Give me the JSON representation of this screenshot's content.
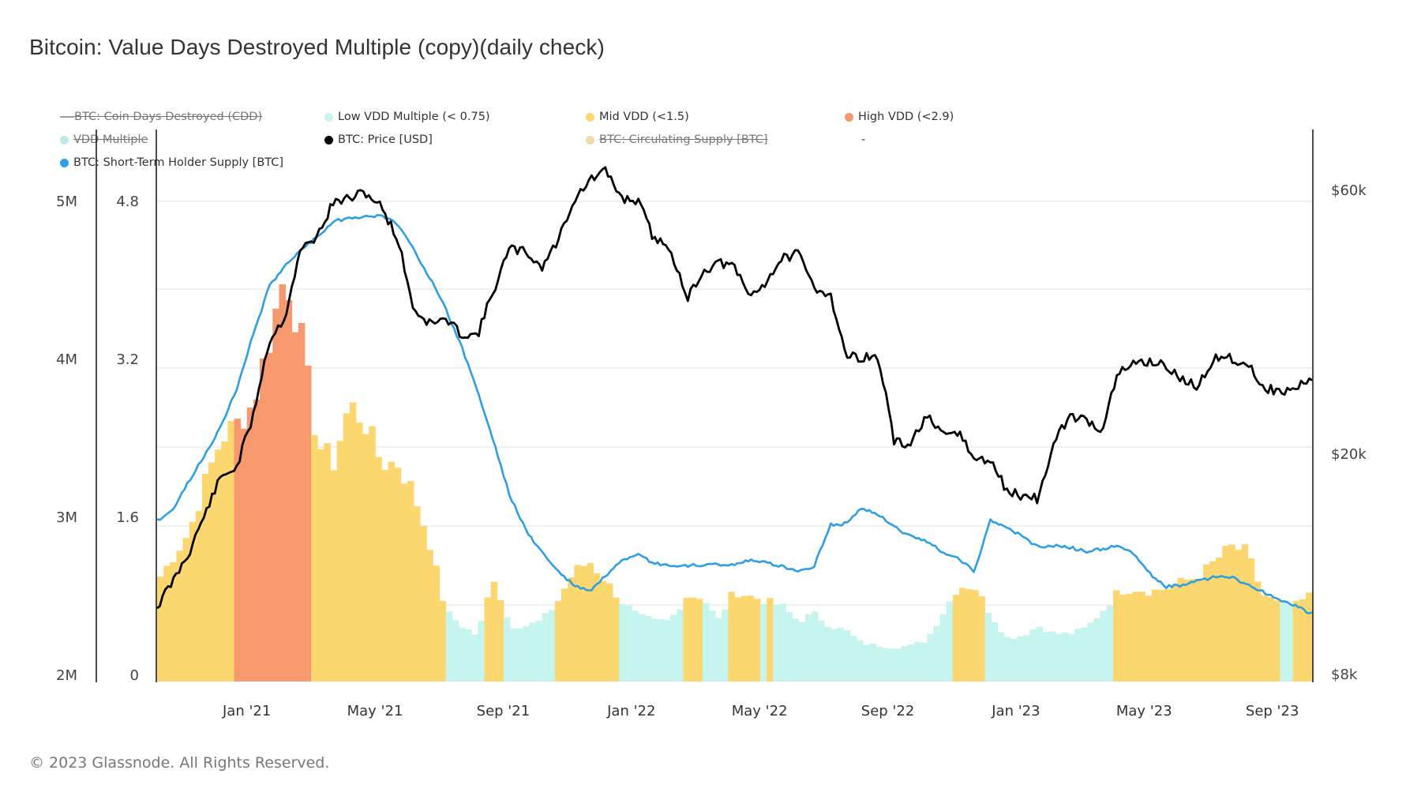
{
  "title": "Bitcoin: Value Days Destroyed Multiple (copy)(daily check)",
  "footer": "© 2023 Glassnode. All Rights Reserved.",
  "legend": [
    {
      "label": "BTC: Coin Days Destroyed (CDD)",
      "color": "#9e9e9e",
      "marker": "line",
      "hidden": true
    },
    {
      "label": "Low VDD Multiple (< 0.75)",
      "color": "#c6f4ee",
      "marker": "dot",
      "hidden": false
    },
    {
      "label": "Mid VDD (<1.5)",
      "color": "#fcd66f",
      "marker": "dot",
      "hidden": false
    },
    {
      "label": "High VDD (<2.9)",
      "color": "#f7996f",
      "marker": "dot",
      "hidden": false
    },
    {
      "label": "VDD Multiple",
      "color": "#b9ece6",
      "marker": "dot",
      "hidden": true
    },
    {
      "label": "BTC: Price [USD]",
      "color": "#000000",
      "marker": "dot",
      "hidden": false
    },
    {
      "label": "BTC: Circulating Supply [BTC]",
      "color": "#f2d9a6",
      "marker": "dot",
      "hidden": true
    },
    {
      "label": "-",
      "color": "",
      "marker": "none",
      "hidden": false
    },
    {
      "label": "BTC: Short-Term Holder Supply [BTC]",
      "color": "#2d9fe2",
      "marker": "dot",
      "hidden": false
    }
  ],
  "chart_data": {
    "type": "line",
    "title": "Bitcoin: Value Days Destroyed Multiple (copy)(daily check)",
    "x_range": [
      "2020-10-07",
      "2023-10-08"
    ],
    "x_ticks": [
      "Jan '21",
      "May '21",
      "Sep '21",
      "Jan '22",
      "May '22",
      "Sep '22",
      "Jan '23",
      "May '23",
      "Sep '23"
    ],
    "x_tick_months": [
      3,
      7,
      11,
      15,
      19,
      23,
      27,
      31,
      35
    ],
    "axes": {
      "sth_supply": {
        "side": "left-outer",
        "ticks": [
          "2M",
          "3M",
          "4M",
          "5M"
        ],
        "tick_values": [
          2000000,
          3000000,
          4000000,
          5000000
        ],
        "range": [
          2000000,
          5000000
        ],
        "scale": "linear"
      },
      "vdd_multiple": {
        "side": "left-inner",
        "ticks": [
          "0",
          "1.6",
          "3.2",
          "4.8"
        ],
        "tick_values": [
          0,
          1.6,
          3.2,
          4.8
        ],
        "range": [
          0,
          4.8
        ],
        "scale": "linear"
      },
      "price": {
        "side": "right",
        "ticks": [
          "$8k",
          "$20k",
          "$60k"
        ],
        "tick_values": [
          8000,
          20000,
          60000
        ],
        "range": [
          8000,
          60000
        ],
        "scale": "log"
      }
    },
    "grid": true,
    "legend_position": "top-left",
    "thresholds": {
      "low": 0.75,
      "mid": 1.5,
      "high": 2.9
    },
    "months_from_start": [
      0,
      0.5,
      1,
      1.5,
      2,
      2.5,
      3,
      3.5,
      4,
      4.5,
      5,
      5.5,
      6,
      6.5,
      7,
      7.5,
      8,
      8.5,
      9,
      9.5,
      10,
      10.5,
      11,
      11.5,
      12,
      12.5,
      13,
      13.5,
      14,
      14.5,
      15,
      15.5,
      16,
      16.5,
      17,
      17.5,
      18,
      18.5,
      19,
      19.5,
      20,
      20.5,
      21,
      21.5,
      22,
      22.5,
      23,
      23.5,
      24,
      24.5,
      25,
      25.5,
      26,
      26.5,
      27,
      27.5,
      28,
      28.5,
      29,
      29.5,
      30,
      30.5,
      31,
      31.5,
      32,
      32.5,
      33,
      33.5,
      34,
      34.5,
      35,
      35.5,
      36
    ],
    "series": [
      {
        "name": "BTC: Price [USD]",
        "axis": "price",
        "color": "#000000",
        "values": [
          10600,
          11800,
          13300,
          15600,
          18200,
          19000,
          23400,
          32000,
          35500,
          47000,
          49500,
          57000,
          58000,
          59500,
          56000,
          49000,
          36500,
          34500,
          35000,
          33000,
          32800,
          39500,
          47000,
          46500,
          43500,
          48500,
          57500,
          62500,
          65000,
          58000,
          57500,
          49000,
          47500,
          38000,
          42500,
          44500,
          43500,
          38500,
          41000,
          45200,
          46000,
          40000,
          39000,
          30000,
          30000,
          29800,
          21000,
          20800,
          23500,
          21500,
          22000,
          19500,
          19500,
          17200,
          16800,
          16600,
          21000,
          23500,
          23000,
          22200,
          28000,
          29200,
          29500,
          28800,
          27200,
          26500,
          30100,
          29800,
          29300,
          26500,
          25900,
          26200,
          27500
        ]
      },
      {
        "name": "BTC: Short-Term Holder Supply [BTC]",
        "axis": "sth_supply",
        "color": "#2d9fe2",
        "values": [
          2980000,
          3050000,
          3230000,
          3400000,
          3580000,
          3820000,
          4160000,
          4460000,
          4600000,
          4690000,
          4780000,
          4870000,
          4900000,
          4900000,
          4910000,
          4860000,
          4700000,
          4520000,
          4320000,
          4080000,
          3800000,
          3480000,
          3140000,
          2920000,
          2780000,
          2660000,
          2570000,
          2530000,
          2630000,
          2720000,
          2760000,
          2710000,
          2690000,
          2690000,
          2700000,
          2700000,
          2700000,
          2730000,
          2710000,
          2690000,
          2660000,
          2690000,
          2950000,
          2960000,
          3060000,
          3020000,
          2940000,
          2880000,
          2850000,
          2780000,
          2740000,
          2660000,
          2980000,
          2930000,
          2880000,
          2810000,
          2820000,
          2810000,
          2780000,
          2800000,
          2820000,
          2760000,
          2640000,
          2560000,
          2570000,
          2600000,
          2620000,
          2620000,
          2580000,
          2530000,
          2480000,
          2440000,
          2390000
        ]
      },
      {
        "name": "VDD Multiple",
        "axis": "vdd_multiple",
        "color": "#fcd66f",
        "values": [
          0.95,
          1.2,
          1.45,
          1.95,
          2.4,
          2.55,
          2.75,
          3.4,
          4.1,
          3.4,
          2.35,
          2.15,
          2.75,
          2.55,
          2.15,
          2.15,
          1.85,
          1.35,
          0.65,
          0.5,
          0.4,
          1.0,
          0.5,
          0.5,
          0.55,
          0.75,
          1.05,
          1.15,
          0.95,
          0.75,
          0.6,
          0.55,
          0.55,
          0.8,
          0.8,
          0.55,
          0.85,
          0.8,
          0.75,
          0.7,
          0.55,
          0.62,
          0.5,
          0.45,
          0.32,
          0.3,
          0.28,
          0.3,
          0.35,
          0.62,
          0.9,
          0.9,
          0.62,
          0.38,
          0.4,
          0.5,
          0.42,
          0.42,
          0.48,
          0.65,
          0.85,
          0.88,
          0.85,
          0.88,
          0.95,
          1.0,
          1.15,
          1.3,
          1.25,
          0.82,
          0.72,
          0.7,
          0.82
        ]
      }
    ]
  }
}
